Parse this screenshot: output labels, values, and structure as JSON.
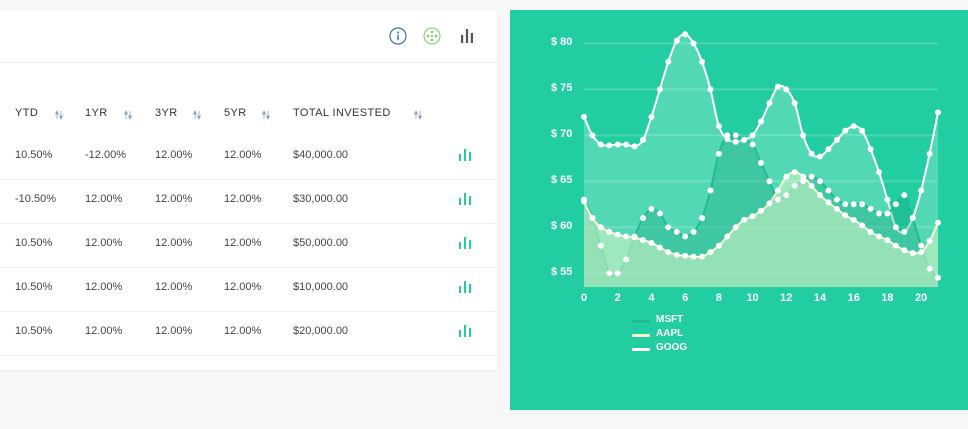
{
  "table": {
    "headers": [
      "YTD",
      "1YR",
      "3YR",
      "5YR",
      "TOTAL INVESTED"
    ],
    "rows": [
      {
        "ytd": "10.50%",
        "y1": "-12.00%",
        "y3": "12.00%",
        "y5": "12.00%",
        "total": "$40,000.00"
      },
      {
        "ytd": "-10.50%",
        "y1": "12.00%",
        "y3": "12.00%",
        "y5": "12.00%",
        "total": "$30,000.00"
      },
      {
        "ytd": "10.50%",
        "y1": "12.00%",
        "y3": "12.00%",
        "y5": "12.00%",
        "total": "$50,000.00"
      },
      {
        "ytd": "10.50%",
        "y1": "12.00%",
        "y3": "12.00%",
        "y5": "12.00%",
        "total": "$10,000.00"
      },
      {
        "ytd": "10.50%",
        "y1": "12.00%",
        "y3": "12.00%",
        "y5": "12.00%",
        "total": "$20,000.00"
      }
    ]
  },
  "toolbar": {
    "icons": [
      "info-icon",
      "network-icon",
      "bar-chart-icon"
    ]
  },
  "colors": {
    "accent": "#23cda2",
    "icon_blue": "#3a6ea5",
    "icon_green": "#8cd17a",
    "sort_arrow": "#8fa3b8"
  },
  "chart_data": {
    "type": "area",
    "y_tick_labels": [
      "$ 80",
      "$ 75",
      "$ 70",
      "$ 65",
      "$ 60",
      "$ 55"
    ],
    "y_ticks": [
      80,
      75,
      70,
      65,
      60,
      55
    ],
    "x_ticks": [
      "0",
      "2",
      "4",
      "6",
      "8",
      "10",
      "12",
      "14",
      "16",
      "18",
      "20"
    ],
    "xlim": [
      0,
      21
    ],
    "ylim": [
      53.5,
      82
    ],
    "grid": true,
    "legend_position": "bottom-left",
    "x": [
      0,
      0.5,
      1,
      1.5,
      2,
      2.5,
      3,
      3.5,
      4,
      4.5,
      5,
      5.5,
      6,
      6.5,
      7,
      7.5,
      8,
      8.5,
      9,
      9.5,
      10,
      10.5,
      11,
      11.5,
      12,
      12.5,
      13,
      13.5,
      14,
      14.5,
      15,
      15.5,
      16,
      16.5,
      17,
      17.5,
      18,
      18.5,
      19,
      19.5,
      20,
      20.5,
      21
    ],
    "series": [
      {
        "name": "MSFT",
        "color": "#1fbc94",
        "values": [
          63,
          61,
          58,
          55,
          55,
          56.5,
          59,
          61,
          62,
          61.5,
          60,
          59.5,
          59,
          59.5,
          61,
          64,
          68,
          70,
          70,
          69.5,
          69,
          67,
          65,
          63,
          63.5,
          64.5,
          65,
          65.5,
          65,
          64,
          63,
          62.5,
          62.5,
          62.5,
          62,
          61.5,
          61.5,
          62.5,
          63.5,
          61,
          58,
          55.5,
          54.5
        ]
      },
      {
        "name": "AAPL",
        "color": "#f4f7c8",
        "values": [
          62.8,
          61,
          60,
          59.5,
          59.2,
          59,
          58.9,
          58.6,
          58.3,
          57.8,
          57.3,
          57,
          56.9,
          56.8,
          56.8,
          57.3,
          58,
          59,
          60,
          60.8,
          61.2,
          61.8,
          62.6,
          64,
          65.5,
          66,
          65.5,
          64.5,
          63.5,
          62.7,
          62,
          61.3,
          60.8,
          60.2,
          59.5,
          59,
          58.6,
          58,
          57.5,
          57.2,
          57.3,
          58.5,
          60.5
        ]
      },
      {
        "name": "GOOG",
        "color": "#ffffff",
        "values": [
          72,
          70,
          69,
          68.9,
          69,
          69,
          68.8,
          69.5,
          72,
          75,
          78,
          80.3,
          81,
          80,
          78,
          75,
          71,
          69.6,
          69.3,
          69.5,
          70,
          71.5,
          73.5,
          75.3,
          75,
          73.5,
          70,
          68,
          67.7,
          68.5,
          69.5,
          70.5,
          71,
          70.5,
          68.5,
          66,
          63,
          60,
          59.5,
          61,
          64,
          68,
          72.5
        ]
      }
    ]
  }
}
